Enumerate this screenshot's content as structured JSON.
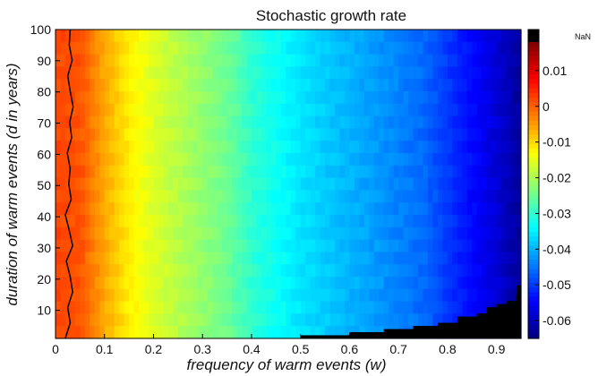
{
  "chart_data": {
    "type": "heatmap",
    "title": "Stochastic growth rate",
    "xlabel": "frequency of warm events (w)",
    "ylabel": "duration of warm events (d in years)",
    "xlim": [
      0,
      0.95
    ],
    "ylim": [
      1,
      100
    ],
    "x_ticks": [
      "0",
      "0.1",
      "0.2",
      "0.3",
      "0.4",
      "0.5",
      "0.6",
      "0.7",
      "0.8",
      "0.9"
    ],
    "y_ticks": [
      "10",
      "20",
      "30",
      "40",
      "50",
      "60",
      "70",
      "80",
      "90",
      "100"
    ],
    "colorbar": {
      "range": [
        -0.065,
        0.018
      ],
      "ticks": [
        "0.01",
        "0",
        "-0.01",
        "-0.02",
        "-0.03",
        "-0.04",
        "-0.05",
        "-0.06"
      ],
      "nan_label": "NaN",
      "nan_color": "#000000",
      "colormap": "jet"
    },
    "growth_rate_by_w": {
      "w": [
        0,
        0.05,
        0.1,
        0.15,
        0.2,
        0.25,
        0.3,
        0.35,
        0.4,
        0.45,
        0.5,
        0.55,
        0.6,
        0.65,
        0.7,
        0.75,
        0.8,
        0.85,
        0.9,
        0.95
      ],
      "value": [
        0.002,
        0.001,
        -0.006,
        -0.012,
        -0.016,
        -0.019,
        -0.022,
        -0.025,
        -0.03,
        -0.033,
        -0.036,
        -0.038,
        -0.04,
        -0.042,
        -0.044,
        -0.046,
        -0.05,
        -0.054,
        -0.058,
        -0.063
      ]
    },
    "zero_contour_w": [
      0.02,
      0.03,
      0.025,
      0.035,
      0.03,
      0.022,
      0.035,
      0.028,
      0.02,
      0.032,
      0.027,
      0.03,
      0.024,
      0.033,
      0.029,
      0.036,
      0.03,
      0.025,
      0.034,
      0.028,
      0.03
    ],
    "nan_boundary": {
      "w": [
        0.5,
        0.6,
        0.67,
        0.73,
        0.78,
        0.82,
        0.86,
        0.88,
        0.9,
        0.92,
        0.94,
        0.95
      ],
      "d_max": [
        2,
        3,
        4,
        5,
        6,
        8,
        9,
        11,
        12,
        13,
        15,
        18
      ]
    }
  }
}
